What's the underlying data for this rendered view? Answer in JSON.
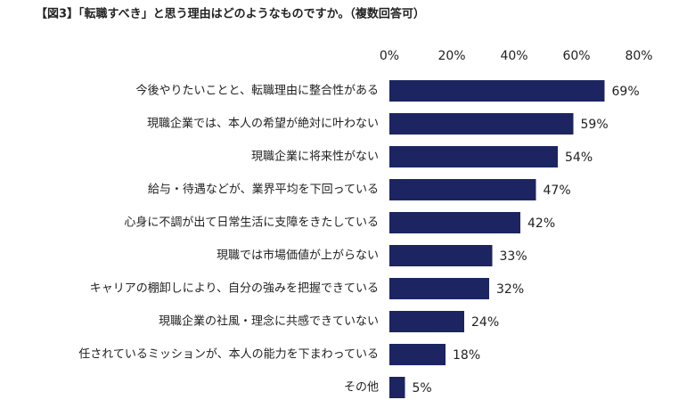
{
  "chart_data": {
    "type": "barh",
    "title": "【図3】「転職すべき」と思う理由はどのようなものですか。（複数回答可）",
    "categories": [
      "今後やりたいことと、転職理由に整合性がある",
      "現職企業では、本人の希望が絶対に叶わない",
      "現職企業に将来性がない",
      "給与・待遇などが、業界平均を下回っている",
      "心身に不調が出て日常生活に支障をきたしている",
      "現職では市場価値が上がらない",
      "キャリアの棚卸しにより、自分の強みを把握できている",
      "現職企業の社風・理念に共感できていない",
      "任されているミッションが、本人の能力を下まわっている",
      "その他"
    ],
    "values": [
      69,
      59,
      54,
      47,
      42,
      33,
      32,
      24,
      18,
      5
    ],
    "value_labels": [
      "69%",
      "59%",
      "54%",
      "47%",
      "42%",
      "33%",
      "32%",
      "24%",
      "18%",
      "5%"
    ],
    "color": "#1c2562",
    "xlim": [
      0,
      80
    ],
    "xticks": [
      {
        "value": 0,
        "label": "0%"
      },
      {
        "value": 20,
        "label": "20%"
      },
      {
        "value": 40,
        "label": "40%"
      },
      {
        "value": 60,
        "label": "60%"
      },
      {
        "value": 80,
        "label": "80%"
      }
    ],
    "grid": false
  }
}
